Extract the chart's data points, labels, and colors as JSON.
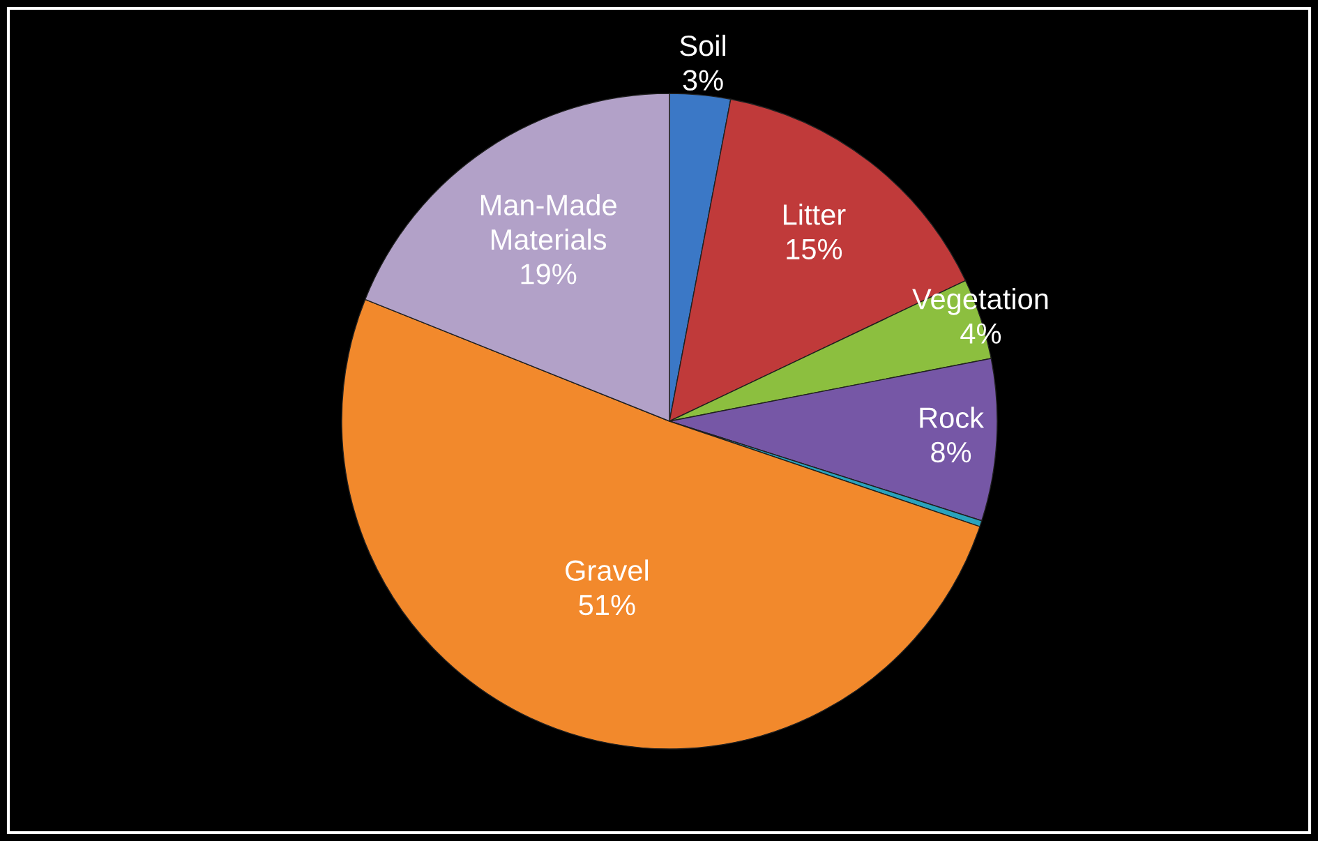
{
  "chart_data": {
    "type": "pie",
    "categories": [
      "Soil",
      "Litter",
      "Vegetation",
      "Rock",
      null,
      "Gravel",
      "Man-Made Materials"
    ],
    "values": [
      3,
      15,
      4,
      8,
      0.3,
      51,
      19
    ],
    "value_labels": [
      "3%",
      "15%",
      "4%",
      "8%",
      null,
      "51%",
      "19%"
    ],
    "colors": [
      "#3b78c6",
      "#c03a3a",
      "#8cbf3f",
      "#7657a6",
      "#2aa3bd",
      "#f2892c",
      "#b2a1c8"
    ]
  }
}
